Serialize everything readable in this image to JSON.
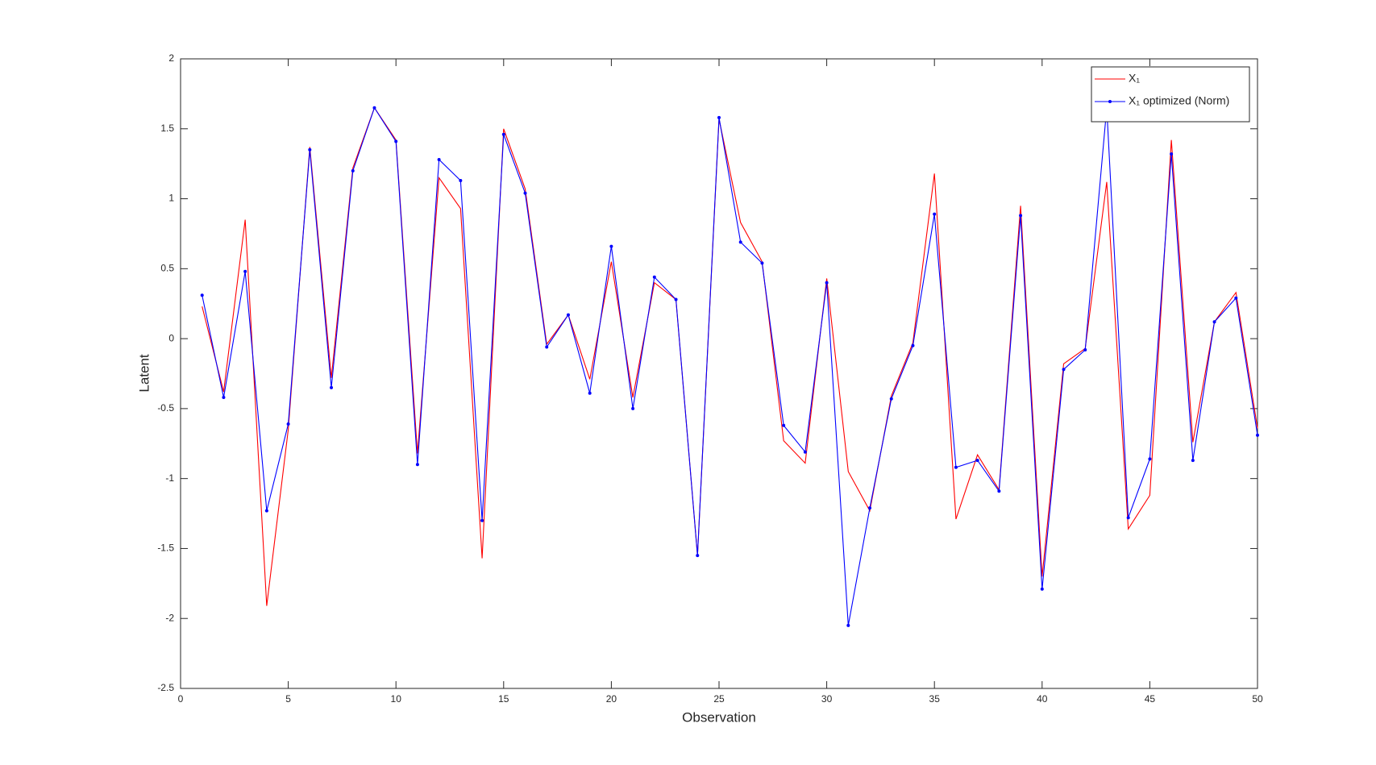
{
  "chart_data": {
    "type": "line",
    "x_label": "Observation",
    "y_label": "Latent",
    "x": [
      1,
      2,
      3,
      4,
      5,
      6,
      7,
      8,
      9,
      10,
      11,
      12,
      13,
      14,
      15,
      16,
      17,
      18,
      19,
      20,
      21,
      22,
      23,
      24,
      25,
      26,
      27,
      28,
      29,
      30,
      31,
      32,
      33,
      34,
      35,
      36,
      37,
      38,
      39,
      40,
      41,
      42,
      43,
      44,
      45,
      46,
      47,
      48,
      49,
      50
    ],
    "series": [
      {
        "name": "X₁",
        "color": "#ff0000",
        "marker": false,
        "values": [
          0.23,
          -0.38,
          0.85,
          -1.91,
          -0.65,
          1.37,
          -0.28,
          1.22,
          1.65,
          1.42,
          -0.82,
          1.15,
          0.93,
          -1.57,
          1.5,
          1.07,
          -0.04,
          0.17,
          -0.29,
          0.55,
          -0.42,
          0.4,
          0.28,
          -1.55,
          1.57,
          0.83,
          0.55,
          -0.73,
          -0.89,
          0.43,
          -0.95,
          -1.23,
          -0.41,
          -0.03,
          1.18,
          -1.29,
          -0.83,
          -1.08,
          0.95,
          -1.7,
          -0.18,
          -0.07,
          1.12,
          -1.36,
          -1.12,
          1.42,
          -0.74,
          0.12,
          0.33,
          -0.64
        ]
      },
      {
        "name": "X₁ optimized (Norm)",
        "color": "#0000ff",
        "marker": true,
        "values": [
          0.31,
          -0.42,
          0.48,
          -1.23,
          -0.61,
          1.35,
          -0.35,
          1.2,
          1.65,
          1.41,
          -0.9,
          1.28,
          1.13,
          -1.3,
          1.46,
          1.04,
          -0.06,
          0.17,
          -0.39,
          0.66,
          -0.5,
          0.44,
          0.28,
          -1.55,
          1.58,
          0.69,
          0.54,
          -0.62,
          -0.81,
          0.4,
          -2.05,
          -1.21,
          -0.43,
          -0.05,
          0.89,
          -0.92,
          -0.87,
          -1.09,
          0.88,
          -1.79,
          -0.22,
          -0.08,
          1.65,
          -1.28,
          -0.86,
          1.32,
          -0.87,
          0.12,
          0.29,
          -0.69
        ]
      }
    ],
    "xlim": [
      0,
      50
    ],
    "xticks": [
      0,
      5,
      10,
      15,
      20,
      25,
      30,
      35,
      40,
      45,
      50
    ],
    "ylim": [
      -2.5,
      2
    ],
    "yticks": [
      -2.5,
      -2,
      -1.5,
      -1,
      -0.5,
      0,
      0.5,
      1,
      1.5,
      2
    ],
    "legend": "top-right"
  }
}
